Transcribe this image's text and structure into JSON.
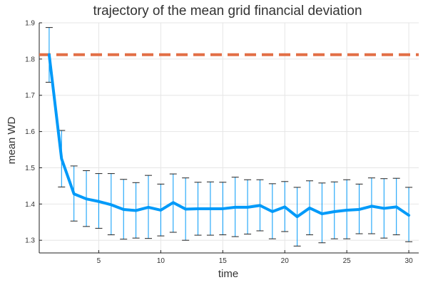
{
  "chart_data": {
    "type": "line",
    "title": "trajectory of the mean grid financial deviation",
    "xlabel": "time",
    "ylabel": "mean WD",
    "xlim": [
      0.2,
      30.8
    ],
    "ylim": [
      1.265,
      1.9
    ],
    "xticks": [
      5,
      10,
      15,
      20,
      25,
      30
    ],
    "yticks": [
      1.3,
      1.4,
      1.5,
      1.6,
      1.7,
      1.8,
      1.9
    ],
    "grid": true,
    "legend": "none",
    "x": [
      1,
      2,
      3,
      4,
      5,
      6,
      7,
      8,
      9,
      10,
      11,
      12,
      13,
      14,
      15,
      16,
      17,
      18,
      19,
      20,
      21,
      22,
      23,
      24,
      25,
      26,
      27,
      28,
      29,
      30
    ],
    "series": [
      {
        "type": "line_with_errorbars",
        "color": "#009af9",
        "values": [
          1.812,
          1.525,
          1.428,
          1.414,
          1.407,
          1.398,
          1.385,
          1.382,
          1.391,
          1.383,
          1.404,
          1.386,
          1.387,
          1.387,
          1.387,
          1.391,
          1.391,
          1.396,
          1.379,
          1.392,
          1.365,
          1.389,
          1.373,
          1.379,
          1.383,
          1.385,
          1.394,
          1.388,
          1.392,
          1.369
        ],
        "upper": [
          1.887,
          1.603,
          1.505,
          1.492,
          1.484,
          1.484,
          1.468,
          1.459,
          1.479,
          1.455,
          1.483,
          1.472,
          1.46,
          1.461,
          1.46,
          1.474,
          1.467,
          1.467,
          1.456,
          1.462,
          1.446,
          1.464,
          1.458,
          1.461,
          1.467,
          1.455,
          1.472,
          1.47,
          1.471,
          1.446
        ],
        "lower": [
          1.736,
          1.447,
          1.353,
          1.338,
          1.333,
          1.315,
          1.303,
          1.306,
          1.305,
          1.312,
          1.322,
          1.3,
          1.314,
          1.314,
          1.315,
          1.31,
          1.317,
          1.326,
          1.304,
          1.324,
          1.284,
          1.315,
          1.293,
          1.304,
          1.304,
          1.318,
          1.318,
          1.306,
          1.315,
          1.296
        ]
      },
      {
        "type": "hline",
        "color": "#e26f46",
        "value": 1.812
      }
    ]
  }
}
